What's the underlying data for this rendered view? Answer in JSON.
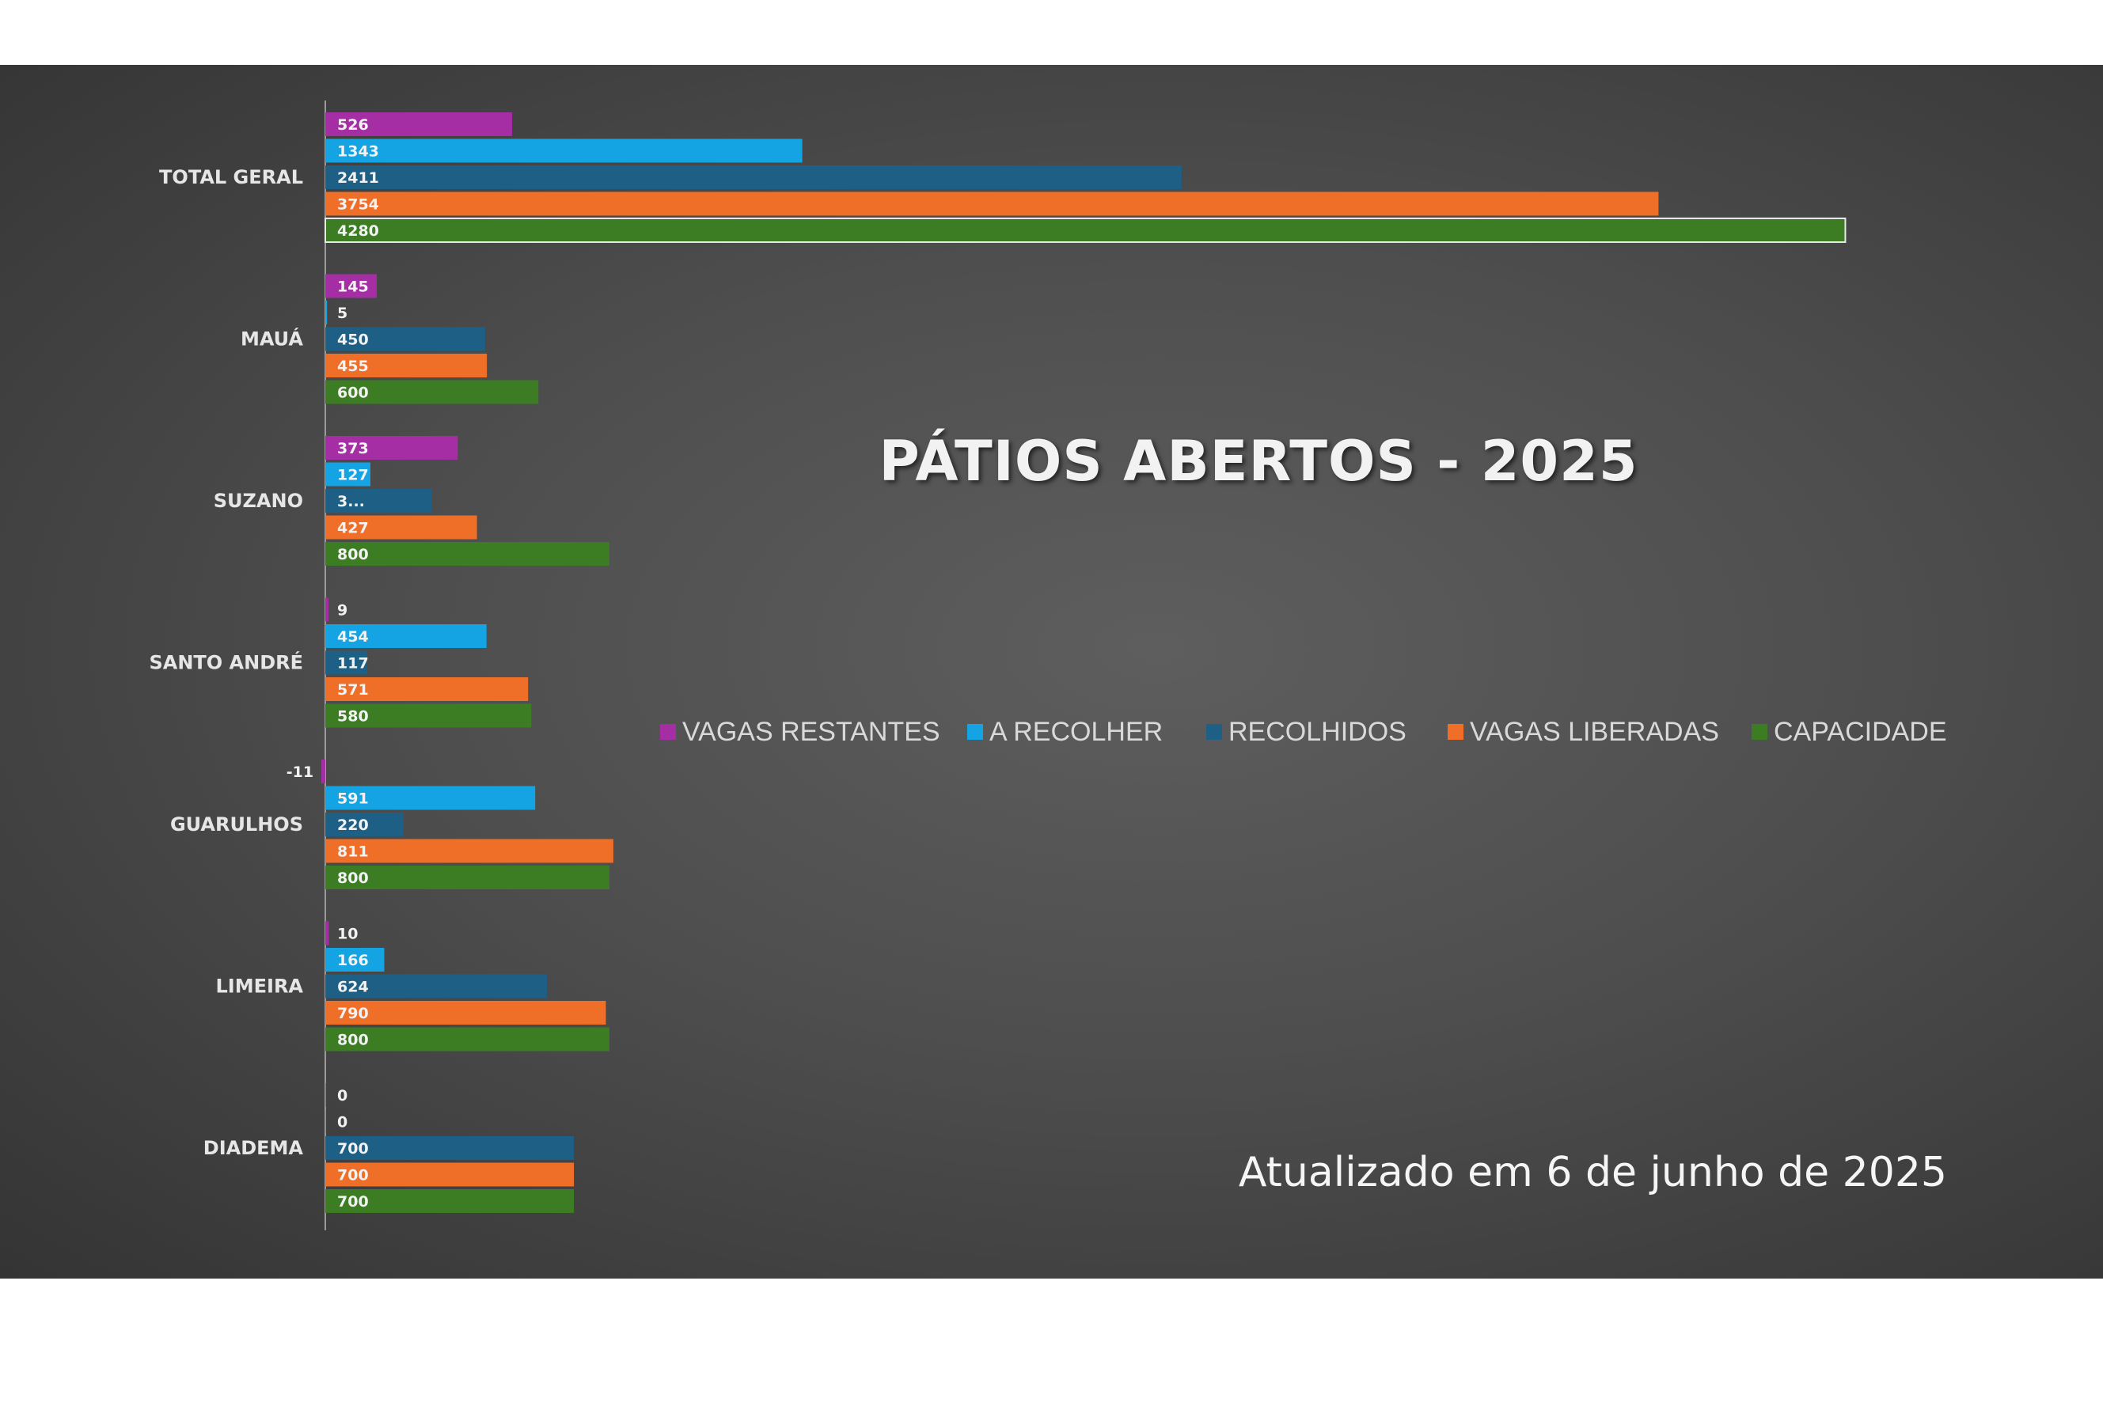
{
  "chart_data": {
    "type": "bar",
    "orientation": "horizontal",
    "title": "PÁTIOS ABERTOS - 2025",
    "categories": [
      "TOTAL GERAL",
      "MAUÁ",
      "SUZANO",
      "SANTO ANDRÉ",
      "GUARULHOS",
      "LIMEIRA",
      "DIADEMA"
    ],
    "series": [
      {
        "name": "VAGAS RESTANTES",
        "color": "#a52ea5",
        "values": [
          526,
          145,
          373,
          9,
          -11,
          10,
          0
        ]
      },
      {
        "name": "A RECOLHER",
        "color": "#14a3e3",
        "values": [
          1343,
          5,
          127,
          454,
          591,
          166,
          0
        ]
      },
      {
        "name": "RECOLHIDOS",
        "color": "#1e5f86",
        "values": [
          2411,
          450,
          300,
          117,
          220,
          624,
          700
        ],
        "display_labels": [
          "2411",
          "450",
          "3...",
          "117",
          "220",
          "624",
          "700"
        ]
      },
      {
        "name": "VAGAS LIBERADAS",
        "color": "#ef6f28",
        "values": [
          3754,
          455,
          427,
          571,
          811,
          790,
          700
        ]
      },
      {
        "name": "CAPACIDADE",
        "color": "#3c7d24",
        "values": [
          4280,
          600,
          800,
          580,
          800,
          800,
          700
        ]
      }
    ],
    "legend_position": "right",
    "grid": false,
    "xlim": [
      -11,
      4280
    ],
    "data_labels": true
  },
  "footer": {
    "updated_text": "Atualizado em 6 de junho de 2025"
  }
}
